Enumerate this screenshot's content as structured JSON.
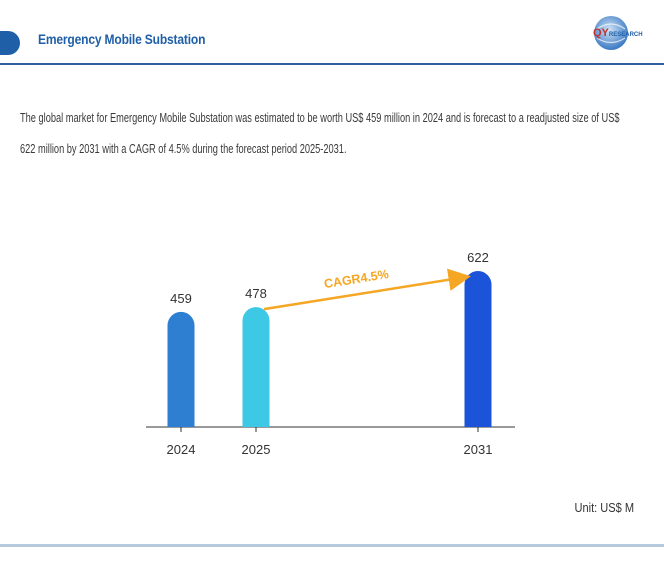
{
  "header": {
    "title": "Emergency Mobile Substation",
    "logo_text_primary": "QY",
    "logo_text_secondary": "RESEARCH"
  },
  "summary": "The global market for Emergency Mobile Substation was estimated to be worth US$ 459 million in 2024 and is forecast to a readjusted size of US$ 622 million by 2031 with a CAGR of 4.5% during the forecast period 2025-2031.",
  "unit_label": "Unit: US$ M",
  "colors": {
    "brand": "#1f5fa8",
    "bar_2024": "#2e7fd1",
    "bar_2025": "#3dc9e6",
    "bar_2031": "#1b54d8",
    "cagr_arrow": "#f5a623"
  },
  "chart_data": {
    "type": "bar",
    "categories": [
      "2024",
      "2025",
      "2031"
    ],
    "values": [
      459,
      478,
      622
    ],
    "data_labels": [
      "459",
      "478",
      "622"
    ],
    "annotation": "CAGR4.5%",
    "annotation_from": "2025",
    "annotation_to": "2031",
    "ylim": [
      0,
      622
    ],
    "grid": false,
    "legend": "none"
  }
}
